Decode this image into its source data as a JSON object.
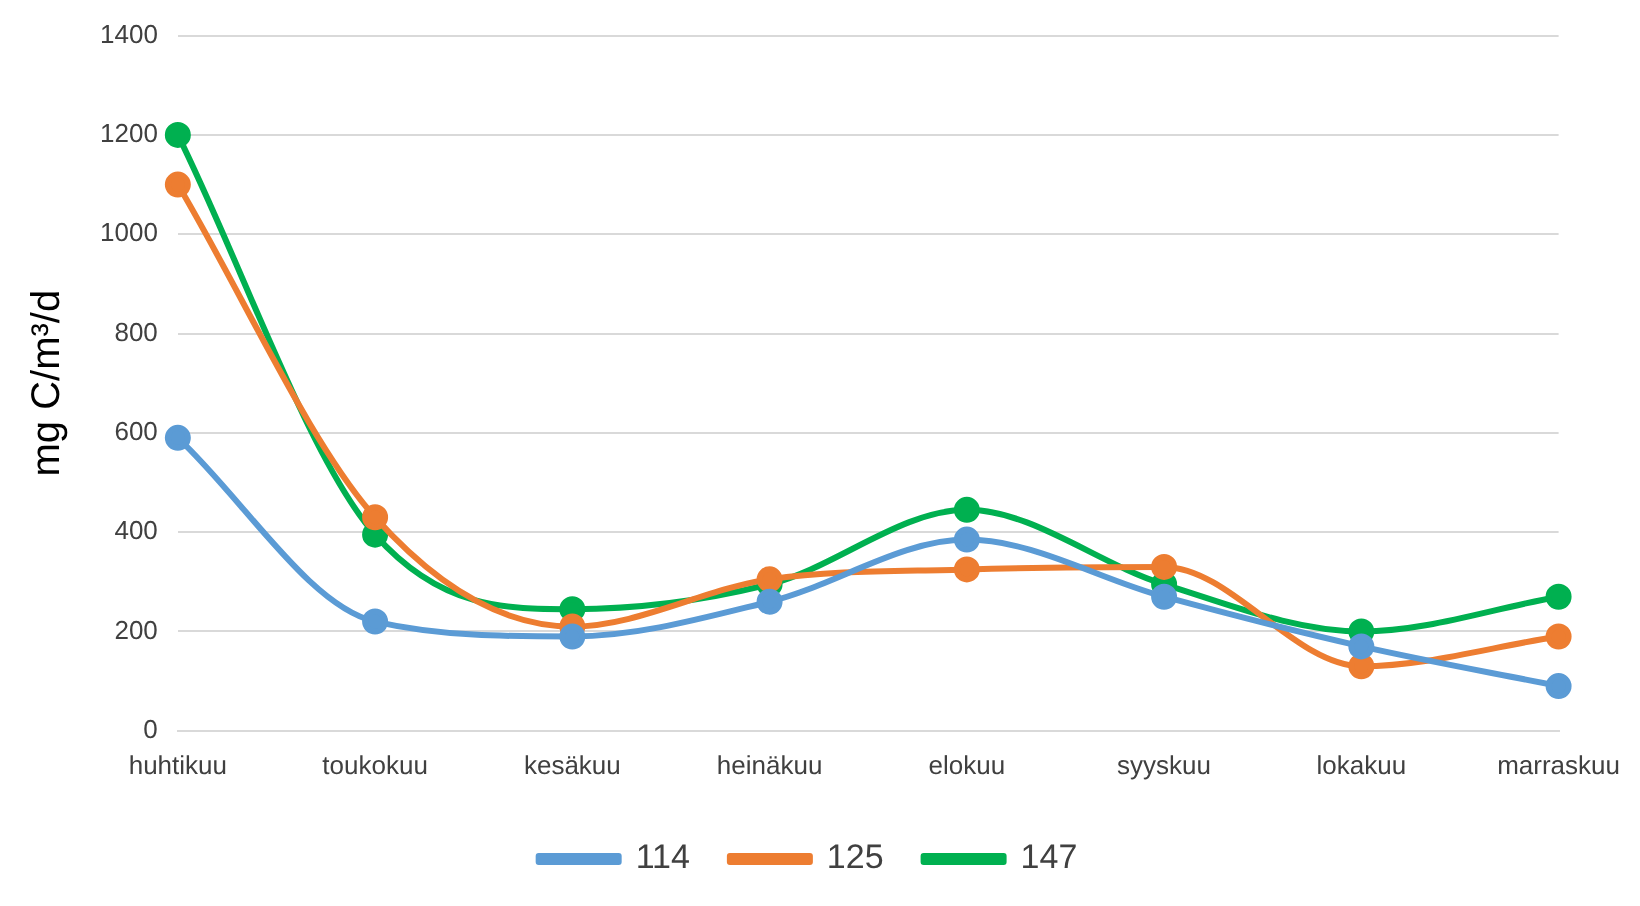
{
  "chart_data": {
    "type": "line",
    "ylabel": "mg C/m³/d",
    "categories": [
      "huhtikuu",
      "toukokuu",
      "kesäkuu",
      "heinäkuu",
      "elokuu",
      "syyskuu",
      "lokakuu",
      "marraskuu"
    ],
    "series": [
      {
        "name": "114",
        "color": "#5b9bd5",
        "values": [
          590,
          220,
          190,
          260,
          385,
          270,
          170,
          90
        ]
      },
      {
        "name": "125",
        "color": "#ed7d31",
        "values": [
          1100,
          430,
          210,
          305,
          325,
          330,
          130,
          190
        ]
      },
      {
        "name": "147",
        "color": "#00b050",
        "values": [
          1200,
          395,
          245,
          295,
          445,
          295,
          200,
          270
        ]
      }
    ],
    "ylim": [
      0,
      1400
    ],
    "yticks": [
      0,
      200,
      400,
      600,
      800,
      1000,
      1200,
      1400
    ],
    "grid": "y",
    "legend": "bottom",
    "marker": "circle",
    "line_style": "solid"
  }
}
